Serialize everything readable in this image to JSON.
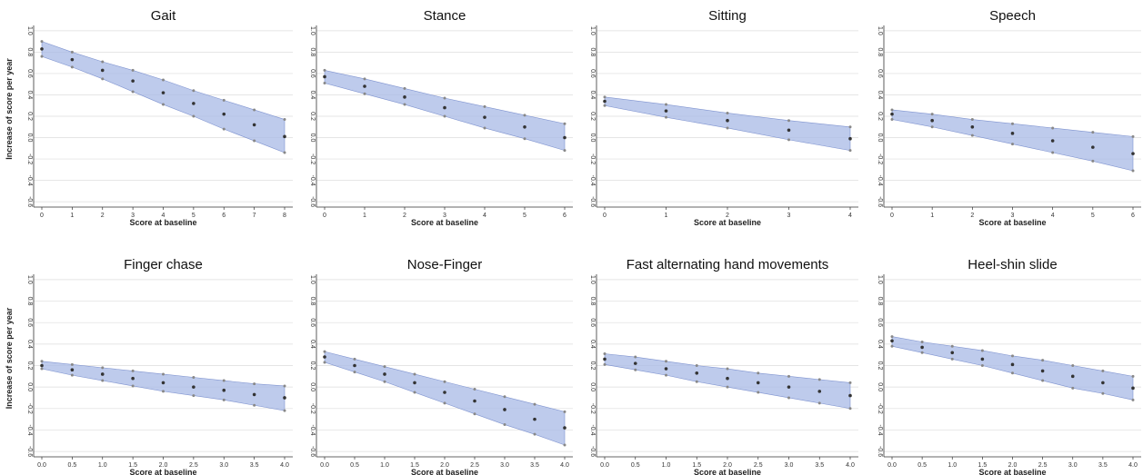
{
  "figure": {
    "ylabel": "Increase of score per year",
    "xlabel": "Score at baseline"
  },
  "colors": {
    "band": "#a8b9e6",
    "band_edge": "#7f93cf",
    "mean_point": "#333333",
    "bound_point": "#888888",
    "grid": "#dddddd"
  },
  "chart_data": [
    {
      "type": "line",
      "title": "Gait",
      "xlabel": "Score at baseline",
      "ylabel": "Increase of score per year",
      "x": [
        0,
        1,
        2,
        3,
        4,
        5,
        6,
        7,
        8
      ],
      "x_ticks": [
        "0",
        "1",
        "2",
        "3",
        "4",
        "5",
        "6",
        "7",
        "8"
      ],
      "ylim": [
        -0.65,
        1.05
      ],
      "y_ticks": [
        "-0.6",
        "-0.4",
        "-0.2",
        "0.0",
        "0.2",
        "0.4",
        "0.6",
        "0.8",
        "1.0"
      ],
      "series": [
        {
          "values": [
            0.83,
            0.73,
            0.63,
            0.53,
            0.42,
            0.32,
            0.22,
            0.12,
            0.01
          ]
        },
        {
          "values": [
            0.9,
            0.8,
            0.71,
            0.63,
            0.54,
            0.44,
            0.35,
            0.26,
            0.17
          ]
        },
        {
          "values": [
            0.76,
            0.66,
            0.55,
            0.43,
            0.31,
            0.2,
            0.08,
            -0.03,
            -0.14
          ]
        }
      ]
    },
    {
      "type": "line",
      "title": "Stance",
      "xlabel": "Score at baseline",
      "ylabel": "",
      "x": [
        0,
        1,
        2,
        3,
        4,
        5,
        6
      ],
      "x_ticks": [
        "0",
        "1",
        "2",
        "3",
        "4",
        "5",
        "6"
      ],
      "ylim": [
        -0.65,
        1.05
      ],
      "y_ticks": [
        "-0.6",
        "-0.4",
        "-0.2",
        "0.0",
        "0.2",
        "0.4",
        "0.6",
        "0.8",
        "1.0"
      ],
      "series": [
        {
          "values": [
            0.57,
            0.48,
            0.38,
            0.28,
            0.19,
            0.1,
            0.0
          ]
        },
        {
          "values": [
            0.63,
            0.55,
            0.46,
            0.37,
            0.29,
            0.21,
            0.13
          ]
        },
        {
          "values": [
            0.51,
            0.41,
            0.31,
            0.2,
            0.09,
            -0.01,
            -0.12
          ]
        }
      ]
    },
    {
      "type": "line",
      "title": "Sitting",
      "xlabel": "Score at baseline",
      "ylabel": "",
      "x": [
        0,
        1,
        2,
        3,
        4
      ],
      "x_ticks": [
        "0",
        "1",
        "2",
        "3",
        "4"
      ],
      "ylim": [
        -0.65,
        1.05
      ],
      "y_ticks": [
        "-0.6",
        "-0.4",
        "-0.2",
        "0.0",
        "0.2",
        "0.4",
        "0.6",
        "0.8",
        "1.0"
      ],
      "series": [
        {
          "values": [
            0.34,
            0.25,
            0.16,
            0.07,
            -0.01
          ]
        },
        {
          "values": [
            0.38,
            0.31,
            0.23,
            0.16,
            0.1
          ]
        },
        {
          "values": [
            0.3,
            0.19,
            0.09,
            -0.02,
            -0.12
          ]
        }
      ]
    },
    {
      "type": "line",
      "title": "Speech",
      "xlabel": "Score at baseline",
      "ylabel": "",
      "x": [
        0,
        1,
        2,
        3,
        4,
        5,
        6
      ],
      "x_ticks": [
        "0",
        "1",
        "2",
        "3",
        "4",
        "5",
        "6"
      ],
      "ylim": [
        -0.65,
        1.05
      ],
      "y_ticks": [
        "-0.6",
        "-0.4",
        "-0.2",
        "0.0",
        "0.2",
        "0.4",
        "0.6",
        "0.8",
        "1.0"
      ],
      "series": [
        {
          "values": [
            0.22,
            0.16,
            0.1,
            0.04,
            -0.03,
            -0.09,
            -0.15
          ]
        },
        {
          "values": [
            0.26,
            0.22,
            0.17,
            0.13,
            0.09,
            0.05,
            0.01
          ]
        },
        {
          "values": [
            0.17,
            0.1,
            0.02,
            -0.06,
            -0.14,
            -0.22,
            -0.31
          ]
        }
      ]
    },
    {
      "type": "line",
      "title": "Finger chase",
      "xlabel": "Score at baseline",
      "ylabel": "Increase of score per year",
      "x": [
        0,
        0.5,
        1,
        1.5,
        2,
        2.5,
        3,
        3.5,
        4
      ],
      "x_ticks": [
        "0.0",
        "0.5",
        "1.0",
        "1.5",
        "2.0",
        "2.5",
        "3.0",
        "3.5",
        "4.0"
      ],
      "ylim": [
        -0.65,
        1.05
      ],
      "y_ticks": [
        "-0.6",
        "-0.4",
        "-0.2",
        "0.0",
        "0.2",
        "0.4",
        "0.6",
        "0.8",
        "1.0"
      ],
      "series": [
        {
          "values": [
            0.2,
            0.16,
            0.12,
            0.08,
            0.04,
            0.0,
            -0.03,
            -0.07,
            -0.1
          ]
        },
        {
          "values": [
            0.24,
            0.21,
            0.18,
            0.15,
            0.12,
            0.09,
            0.06,
            0.03,
            0.01
          ]
        },
        {
          "values": [
            0.17,
            0.11,
            0.06,
            0.01,
            -0.04,
            -0.08,
            -0.12,
            -0.17,
            -0.22
          ]
        }
      ]
    },
    {
      "type": "line",
      "title": "Nose-Finger",
      "xlabel": "Score at baseline",
      "ylabel": "",
      "x": [
        0,
        0.5,
        1,
        1.5,
        2,
        2.5,
        3,
        3.5,
        4
      ],
      "x_ticks": [
        "0.0",
        "0.5",
        "1.0",
        "1.5",
        "2.0",
        "2.5",
        "3.0",
        "3.5",
        "4.0"
      ],
      "ylim": [
        -0.65,
        1.05
      ],
      "y_ticks": [
        "-0.6",
        "-0.4",
        "-0.2",
        "0.0",
        "0.2",
        "0.4",
        "0.6",
        "0.8",
        "1.0"
      ],
      "series": [
        {
          "values": [
            0.28,
            0.2,
            0.12,
            0.04,
            -0.05,
            -0.13,
            -0.21,
            -0.3,
            -0.38
          ]
        },
        {
          "values": [
            0.33,
            0.26,
            0.19,
            0.12,
            0.05,
            -0.02,
            -0.09,
            -0.16,
            -0.23
          ]
        },
        {
          "values": [
            0.23,
            0.14,
            0.05,
            -0.05,
            -0.15,
            -0.25,
            -0.35,
            -0.44,
            -0.54
          ]
        }
      ]
    },
    {
      "type": "line",
      "title": "Fast alternating hand movements",
      "xlabel": "Score at baseline",
      "ylabel": "",
      "x": [
        0,
        0.5,
        1,
        1.5,
        2,
        2.5,
        3,
        3.5,
        4
      ],
      "x_ticks": [
        "0.0",
        "0.5",
        "1.0",
        "1.5",
        "2.0",
        "2.5",
        "3.0",
        "3.5",
        "4.0"
      ],
      "ylim": [
        -0.65,
        1.05
      ],
      "y_ticks": [
        "-0.6",
        "-0.4",
        "-0.2",
        "0.0",
        "0.2",
        "0.4",
        "0.6",
        "0.8",
        "1.0"
      ],
      "series": [
        {
          "values": [
            0.26,
            0.22,
            0.17,
            0.13,
            0.08,
            0.04,
            0.0,
            -0.04,
            -0.08
          ]
        },
        {
          "values": [
            0.31,
            0.28,
            0.24,
            0.2,
            0.17,
            0.13,
            0.1,
            0.07,
            0.04
          ]
        },
        {
          "values": [
            0.21,
            0.16,
            0.11,
            0.05,
            0.0,
            -0.05,
            -0.1,
            -0.15,
            -0.2
          ]
        }
      ]
    },
    {
      "type": "line",
      "title": "Heel-shin slide",
      "xlabel": "Score at baseline",
      "ylabel": "",
      "x": [
        0,
        0.5,
        1,
        1.5,
        2,
        2.5,
        3,
        3.5,
        4
      ],
      "x_ticks": [
        "0.0",
        "0.5",
        "1.0",
        "1.5",
        "2.0",
        "2.5",
        "3.0",
        "3.5",
        "4.0"
      ],
      "ylim": [
        -0.65,
        1.05
      ],
      "y_ticks": [
        "-0.6",
        "-0.4",
        "-0.2",
        "0.0",
        "0.2",
        "0.4",
        "0.6",
        "0.8",
        "1.0"
      ],
      "series": [
        {
          "values": [
            0.43,
            0.37,
            0.32,
            0.26,
            0.21,
            0.15,
            0.1,
            0.04,
            -0.01
          ]
        },
        {
          "values": [
            0.47,
            0.42,
            0.38,
            0.34,
            0.29,
            0.25,
            0.2,
            0.15,
            0.1
          ]
        },
        {
          "values": [
            0.38,
            0.32,
            0.26,
            0.2,
            0.13,
            0.06,
            -0.01,
            -0.06,
            -0.12
          ]
        }
      ]
    }
  ]
}
